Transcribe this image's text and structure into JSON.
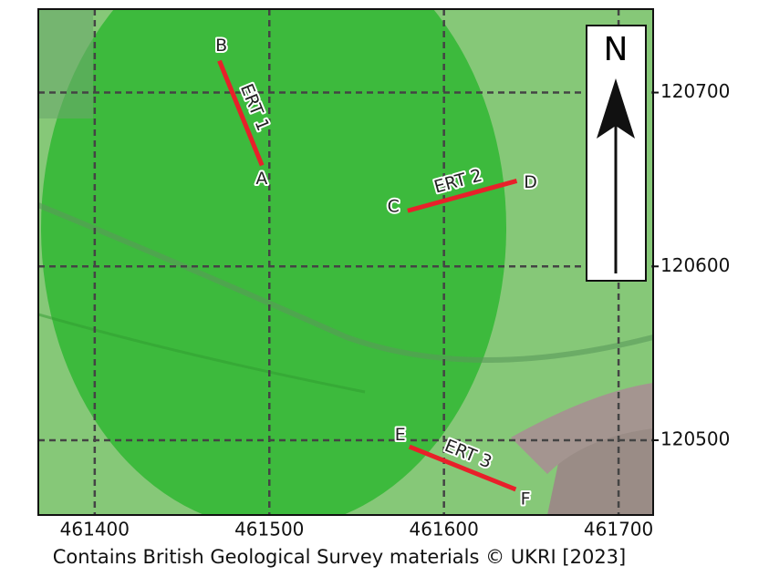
{
  "map": {
    "xlim": [
      461367.7,
      461719.8
    ],
    "ylim": [
      120457,
      120748
    ],
    "xticks": [
      461400,
      461500,
      461600,
      461700
    ],
    "yticks": [
      120500,
      120600,
      120700
    ],
    "north": "N",
    "credit": "Contains British Geological Survey materials © UKRI [2023]",
    "lines": [
      {
        "name": "ERT 1",
        "color": "#e8202a",
        "points": [
          {
            "label": "B",
            "x": 461471.4,
            "y": 120718.3
          },
          {
            "label": "A",
            "x": 461495.8,
            "y": 120658.1
          }
        ]
      },
      {
        "name": "ERT 2",
        "color": "#e8202a",
        "points": [
          {
            "label": "C",
            "x": 461579.2,
            "y": 120632
          },
          {
            "label": "D",
            "x": 461641.7,
            "y": 120649.2
          }
        ]
      },
      {
        "name": "ERT 3",
        "color": "#e8202a",
        "points": [
          {
            "label": "E",
            "x": 461580.2,
            "y": 120496.3
          },
          {
            "label": "F",
            "x": 461641.1,
            "y": 120471.7
          }
        ]
      }
    ]
  }
}
